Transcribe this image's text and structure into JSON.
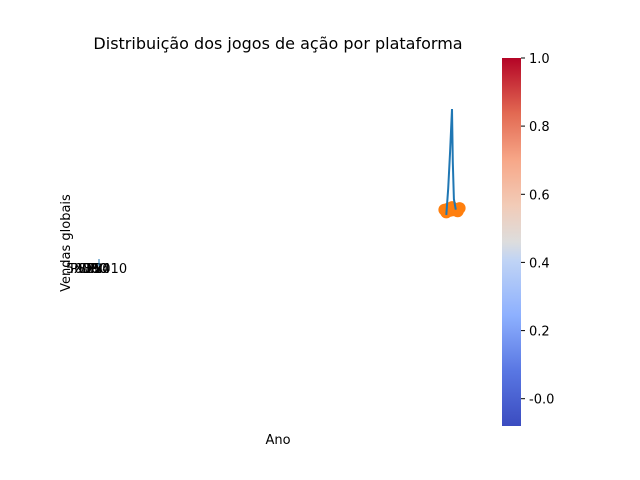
{
  "chart_data": {
    "type": "scatter",
    "title": "Distribuição dos jogos de ação por plataforma",
    "xlabel": "Ano",
    "ylabel": "Vendas globais",
    "grid": false,
    "axes_visible": false,
    "overlapping_labels": [
      "5000",
      "PS3",
      "X360",
      "Wii",
      "DS",
      "PS4",
      "PC",
      "2010"
    ],
    "series": [
      {
        "color": "#ff7f0e",
        "points": [
          [
            0.98,
            0.51
          ],
          [
            0.985,
            0.505
          ],
          [
            0.99,
            0.512
          ],
          [
            0.995,
            0.508
          ],
          [
            1.0,
            0.515
          ],
          [
            1.005,
            0.509
          ],
          [
            1.01,
            0.511
          ],
          [
            1.015,
            0.507
          ],
          [
            1.02,
            0.513
          ]
        ]
      },
      {
        "color": "#1f77b4",
        "line": [
          [
            0.985,
            0.5
          ],
          [
            0.99,
            0.55
          ],
          [
            0.995,
            0.62
          ],
          [
            1.0,
            0.7
          ],
          [
            1.002,
            0.6
          ],
          [
            1.005,
            0.53
          ],
          [
            1.01,
            0.51
          ]
        ]
      }
    ],
    "colorbar": {
      "colormap": "coolwarm",
      "min": -0.08,
      "max": 1.0,
      "ticks": [
        "-0.0",
        "0.2",
        "0.4",
        "0.6",
        "0.8",
        "1.0"
      ],
      "tick_values": [
        0.0,
        0.2,
        0.4,
        0.6,
        0.8,
        1.0
      ]
    }
  }
}
